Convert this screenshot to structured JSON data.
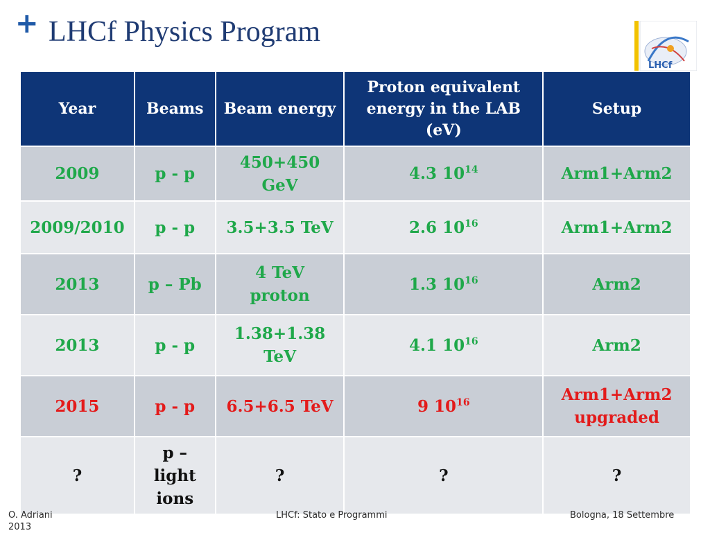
{
  "header": {
    "bullet": "+",
    "title": "LHCf Physics Program"
  },
  "logo": {
    "icon": "lhcf-logo-icon",
    "text": "LHCf"
  },
  "table": {
    "headers": [
      "Year",
      "Beams",
      "Beam energy",
      "Proton equivalent energy in the LAB (eV)",
      "Setup"
    ],
    "rows": [
      {
        "year": "2009",
        "beams": "p - p",
        "energy": "450+450 GeV",
        "proton_base": "4.3 10",
        "proton_exp": "14",
        "setup": "Arm1+Arm2",
        "color": "green"
      },
      {
        "year": "2009/2010",
        "beams": "p - p",
        "energy": "3.5+3.5 TeV",
        "proton_base": "2.6 10",
        "proton_exp": "16",
        "setup": "Arm1+Arm2",
        "color": "green"
      },
      {
        "year": "2013",
        "beams": "p – Pb",
        "energy": "4 TeV proton",
        "proton_base": "1.3 10",
        "proton_exp": "16",
        "setup": "Arm2",
        "color": "green"
      },
      {
        "year": "2013",
        "beams": "p - p",
        "energy": "1.38+1.38 TeV",
        "proton_base": "4.1 10",
        "proton_exp": "16",
        "setup": "Arm2",
        "color": "green"
      },
      {
        "year": "2015",
        "beams": "p - p",
        "energy": "6.5+6.5 TeV",
        "proton_base": "9 10",
        "proton_exp": "16",
        "setup": "Arm1+Arm2 upgraded",
        "color": "red"
      },
      {
        "year": "?",
        "beams": "p – light ions",
        "energy": "?",
        "proton_base": "?",
        "proton_exp": "",
        "setup": "?",
        "color": "plain"
      }
    ],
    "colors": {
      "header_bg": "#0e3577",
      "green": "#1fa84a",
      "red": "#e31b1b",
      "row_dark": "#c9ced6",
      "row_light": "#e6e8ec"
    }
  },
  "footer": {
    "left": "O. Adriani 2013",
    "center": "LHCf: Stato e Programmi",
    "right": "Bologna, 18 Settembre"
  }
}
